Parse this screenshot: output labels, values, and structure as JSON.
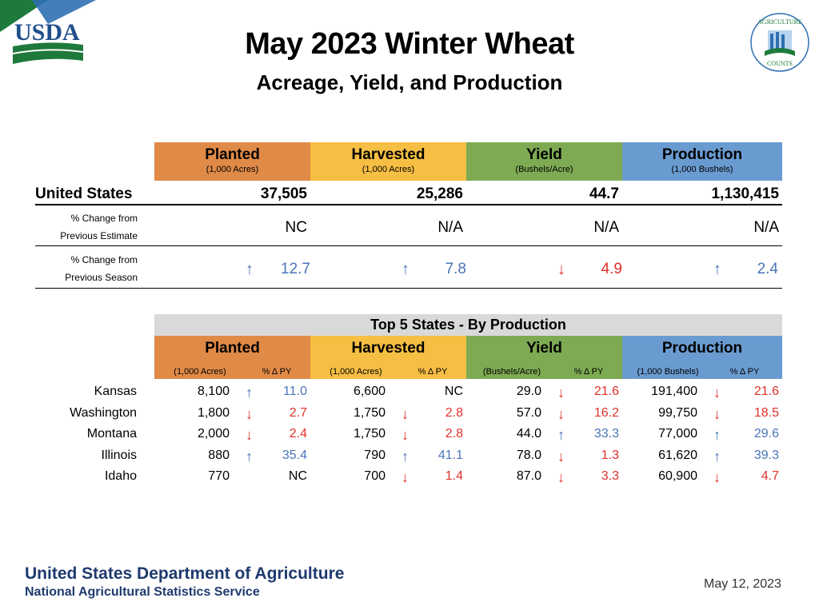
{
  "logos": {
    "usda_text": "USDA",
    "ag_counts_top": "AGRICULTURE",
    "ag_counts_bottom": "COUNTS"
  },
  "title": "May 2023 Winter Wheat",
  "subtitle": "Acreage, Yield, and Production",
  "us_table": {
    "columns": [
      {
        "label": "Planted",
        "unit": "(1,000 Acres)",
        "color": "#E08A47"
      },
      {
        "label": "Harvested",
        "unit": "(1,000 Acres)",
        "color": "#F6BE43"
      },
      {
        "label": "Yield",
        "unit": "(Bushels/Acre)",
        "color": "#7EAA53"
      },
      {
        "label": "Production",
        "unit": "(1,000 Bushels)",
        "color": "#6A9BD0"
      }
    ],
    "us_label": "United States",
    "us_values": [
      "37,505",
      "25,286",
      "44.7",
      "1,130,415"
    ],
    "prev_estimate_label_1": "% Change from",
    "prev_estimate_label_2": "Previous Estimate",
    "prev_estimate": [
      "NC",
      "N/A",
      "N/A",
      "N/A"
    ],
    "prev_season_label_1": "% Change from",
    "prev_season_label_2": "Previous Season",
    "prev_season": [
      {
        "dir": "up",
        "value": "12.7"
      },
      {
        "dir": "up",
        "value": "7.8"
      },
      {
        "dir": "down",
        "value": "4.9"
      },
      {
        "dir": "up",
        "value": "2.4"
      }
    ]
  },
  "top5": {
    "banner": "Top 5 States - By Production",
    "columns": [
      {
        "label": "Planted",
        "unit": "(1,000 Acres)",
        "pct": "% Δ PY"
      },
      {
        "label": "Harvested",
        "unit": "(1,000 Acres)",
        "pct": "% Δ PY"
      },
      {
        "label": "Yield",
        "unit": "(Bushels/Acre)",
        "pct": "% Δ PY"
      },
      {
        "label": "Production",
        "unit": "(1,000 Bushels)",
        "pct": "% Δ PY"
      }
    ],
    "rows": [
      {
        "state": "Kansas",
        "cells": [
          {
            "v": "8,100",
            "dir": "up",
            "p": "11.0"
          },
          {
            "v": "6,600",
            "dir": "",
            "p": "NC"
          },
          {
            "v": "29.0",
            "dir": "down",
            "p": "21.6"
          },
          {
            "v": "191,400",
            "dir": "down",
            "p": "21.6"
          }
        ]
      },
      {
        "state": "Washington",
        "cells": [
          {
            "v": "1,800",
            "dir": "down",
            "p": "2.7"
          },
          {
            "v": "1,750",
            "dir": "down",
            "p": "2.8"
          },
          {
            "v": "57.0",
            "dir": "down",
            "p": "16.2"
          },
          {
            "v": "99,750",
            "dir": "down",
            "p": "18.5"
          }
        ]
      },
      {
        "state": "Montana",
        "cells": [
          {
            "v": "2,000",
            "dir": "down",
            "p": "2.4"
          },
          {
            "v": "1,750",
            "dir": "down",
            "p": "2.8"
          },
          {
            "v": "44.0",
            "dir": "up",
            "p": "33.3"
          },
          {
            "v": "77,000",
            "dir": "up",
            "p": "29.6"
          }
        ]
      },
      {
        "state": "Illinois",
        "cells": [
          {
            "v": "880",
            "dir": "up",
            "p": "35.4"
          },
          {
            "v": "790",
            "dir": "up",
            "p": "41.1"
          },
          {
            "v": "78.0",
            "dir": "down",
            "p": "1.3"
          },
          {
            "v": "61,620",
            "dir": "up",
            "p": "39.3"
          }
        ]
      },
      {
        "state": "Idaho",
        "cells": [
          {
            "v": "770",
            "dir": "",
            "p": "NC"
          },
          {
            "v": "700",
            "dir": "down",
            "p": "1.4"
          },
          {
            "v": "87.0",
            "dir": "down",
            "p": "3.3"
          },
          {
            "v": "60,900",
            "dir": "down",
            "p": "4.7"
          }
        ]
      }
    ]
  },
  "footer": {
    "line1": "United States Department of Agriculture",
    "line2": "National Agricultural Statistics Service",
    "date": "May 12, 2023"
  },
  "colors": {
    "up": "#4A74B8",
    "down": "#E0312B",
    "footer_text": "#1F3A6E"
  }
}
